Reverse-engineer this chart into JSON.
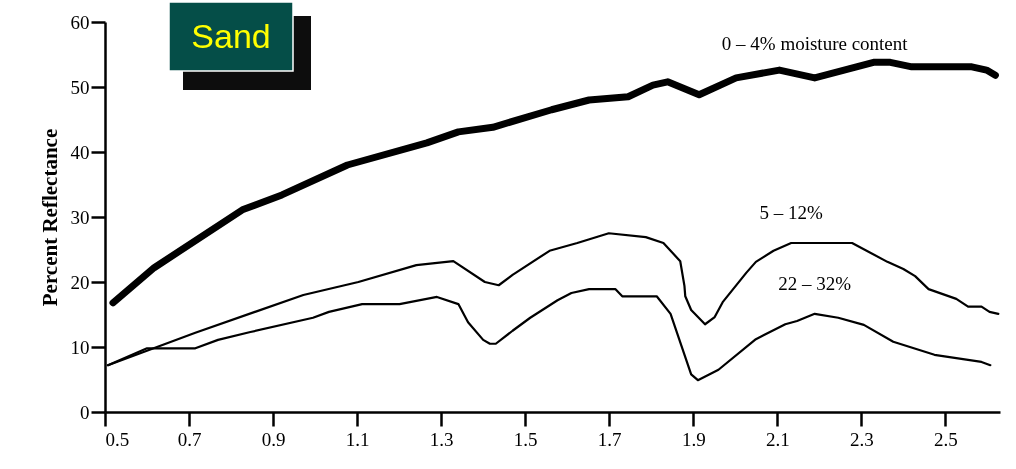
{
  "chart_data": {
    "type": "line",
    "title": "Sand",
    "ylabel": "Percent Reflectance",
    "xlim": [
      0.5,
      2.63
    ],
    "ylim": [
      0,
      60
    ],
    "xticks": [
      0.5,
      0.7,
      0.9,
      1.1,
      1.3,
      1.5,
      1.7,
      1.9,
      2.1,
      2.3,
      2.5
    ],
    "yticks": [
      0,
      10,
      20,
      30,
      40,
      50,
      60
    ],
    "grid": false,
    "legend": false,
    "marker": "none",
    "line_style": "solid",
    "series": [
      {
        "name": "0 – 4% moisture content",
        "color": "#000000",
        "x": [
          0.519,
          0.617,
          0.827,
          0.921,
          1.077,
          1.266,
          1.341,
          1.423,
          1.563,
          1.652,
          1.745,
          1.804,
          1.839,
          1.914,
          2.002,
          2.105,
          2.189,
          2.329,
          2.369,
          2.42,
          2.563,
          2.598,
          2.619
        ],
        "values": [
          16.8,
          22.2,
          31.1,
          33.4,
          38.0,
          41.4,
          43.1,
          43.8,
          46.5,
          48.0,
          48.5,
          50.3,
          50.8,
          48.8,
          51.4,
          52.6,
          51.4,
          53.8,
          53.8,
          53.1,
          53.1,
          52.6,
          51.8
        ]
      },
      {
        "name": "5 – 12%",
        "color": "#000000",
        "x": [
          0.507,
          0.715,
          0.972,
          1.103,
          1.241,
          1.329,
          1.404,
          1.437,
          1.47,
          1.558,
          1.624,
          1.699,
          1.787,
          1.829,
          1.869,
          1.879,
          1.881,
          1.895,
          1.928,
          1.951,
          1.97,
          2.026,
          2.049,
          2.091,
          2.133,
          2.278,
          2.362,
          2.4,
          2.428,
          2.46,
          2.526,
          2.554,
          2.586,
          2.605,
          2.626
        ],
        "values": [
          7.2,
          12.2,
          18.0,
          20.0,
          22.6,
          23.2,
          20.0,
          19.5,
          21.1,
          24.8,
          26.0,
          27.5,
          26.9,
          26.0,
          23.2,
          19.4,
          17.8,
          15.7,
          13.5,
          14.6,
          16.9,
          21.4,
          23.1,
          24.8,
          26.0,
          26.0,
          23.1,
          22.0,
          20.9,
          18.9,
          17.4,
          16.2,
          16.2,
          15.4,
          15.1
        ]
      },
      {
        "name": "22 – 32%",
        "color": "#000000",
        "x": [
          0.507,
          0.6,
          0.715,
          0.769,
          0.846,
          0.995,
          1.033,
          1.112,
          1.201,
          1.29,
          1.341,
          1.364,
          1.4,
          1.416,
          1.43,
          1.47,
          1.512,
          1.577,
          1.61,
          1.652,
          1.715,
          1.731,
          1.813,
          1.846,
          1.895,
          1.911,
          1.96,
          2.049,
          2.119,
          2.147,
          2.189,
          2.245,
          2.306,
          2.376,
          2.474,
          2.586,
          2.607
        ],
        "values": [
          7.2,
          9.8,
          9.8,
          11.1,
          12.3,
          14.5,
          15.4,
          16.6,
          16.6,
          17.7,
          16.6,
          13.8,
          11.1,
          10.5,
          10.5,
          12.5,
          14.5,
          17.2,
          18.3,
          18.9,
          18.9,
          17.8,
          17.8,
          15.1,
          5.8,
          4.9,
          6.5,
          11.2,
          13.5,
          14.0,
          15.1,
          14.5,
          13.4,
          10.8,
          8.8,
          7.7,
          7.2
        ]
      }
    ]
  }
}
